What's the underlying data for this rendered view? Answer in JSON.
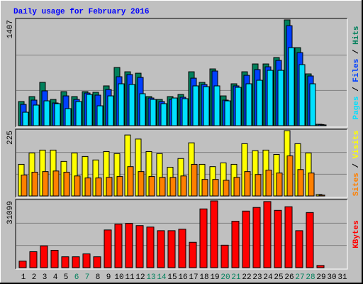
{
  "chart_data": [
    {
      "type": "bar",
      "title": "Daily usage for February 2016",
      "title_color": "#0000ff",
      "ylim": [
        0,
        1407
      ],
      "yticks": [
        1407
      ],
      "grid_divisions": 3,
      "legend_separator": " / ",
      "series": [
        {
          "name": "Hits",
          "color": "#00805c",
          "values": [
            321,
            387,
            576,
            349,
            453,
            387,
            453,
            444,
            529,
            774,
            717,
            698,
            387,
            349,
            387,
            415,
            717,
            576,
            755,
            396,
            557,
            717,
            821,
            821,
            906,
            1407,
            1038,
            689,
            19,
            0,
            0
          ]
        },
        {
          "name": "Files",
          "color": "#0040ff",
          "values": [
            283,
            340,
            463,
            302,
            396,
            349,
            434,
            406,
            481,
            651,
            680,
            642,
            368,
            321,
            349,
            378,
            632,
            548,
            727,
            340,
            529,
            670,
            746,
            783,
            868,
            1330,
            972,
            661,
            15,
            0,
            0
          ]
        },
        {
          "name": "Pages",
          "color": "#00e0ff",
          "values": [
            179,
            274,
            330,
            293,
            227,
            321,
            415,
            264,
            396,
            557,
            548,
            425,
            349,
            293,
            368,
            359,
            529,
            519,
            529,
            330,
            510,
            557,
            604,
            736,
            736,
            1038,
            812,
            557,
            10,
            0,
            0
          ]
        }
      ]
    },
    {
      "type": "bar",
      "ylim": [
        0,
        225
      ],
      "yticks": [
        225
      ],
      "grid_divisions": 3,
      "legend_separator": " / ",
      "series": [
        {
          "name": "Visits",
          "color": "#ffff00",
          "values": [
            109,
            148,
            158,
            158,
            119,
            148,
            136,
            124,
            153,
            146,
            210,
            196,
            153,
            146,
            99,
            129,
            183,
            109,
            101,
            114,
            109,
            180,
            156,
            158,
            143,
            225,
            180,
            148,
            5,
            0,
            0
          ]
        },
        {
          "name": "Sites",
          "color": "#ff8000",
          "values": [
            72,
            82,
            84,
            86,
            82,
            69,
            62,
            62,
            64,
            67,
            101,
            84,
            67,
            64,
            64,
            69,
            109,
            57,
            57,
            54,
            64,
            84,
            74,
            89,
            79,
            138,
            91,
            79,
            3,
            0,
            0
          ]
        }
      ]
    },
    {
      "type": "bar",
      "ylim": [
        0,
        31099
      ],
      "yticks": [
        31099
      ],
      "grid_divisions": 3,
      "legend_separator": " / ",
      "series": [
        {
          "name": "KBytes",
          "color": "#ff0000",
          "values": [
            3042,
            7436,
            10140,
            8112,
            5070,
            5070,
            6422,
            5070,
            17576,
            20280,
            20618,
            19604,
            18928,
            17238,
            17238,
            17914,
            11830,
            27381,
            31099,
            10478,
            21632,
            26367,
            28057,
            30800,
            26702,
            28395,
            17238,
            25688,
            1014,
            0,
            0
          ]
        }
      ],
      "categories": [
        "1",
        "2",
        "3",
        "4",
        "5",
        "6",
        "7",
        "8",
        "9",
        "10",
        "11",
        "12",
        "13",
        "14",
        "15",
        "16",
        "17",
        "18",
        "19",
        "20",
        "21",
        "22",
        "23",
        "24",
        "25",
        "26",
        "27",
        "28",
        "29",
        "30",
        "31"
      ],
      "category_colors": [
        "#000000",
        "#000000",
        "#000000",
        "#000000",
        "#000000",
        "#00805c",
        "#00805c",
        "#000000",
        "#000000",
        "#000000",
        "#000000",
        "#000000",
        "#00805c",
        "#00805c",
        "#000000",
        "#000000",
        "#000000",
        "#000000",
        "#000000",
        "#00805c",
        "#00805c",
        "#000000",
        "#000000",
        "#000000",
        "#000000",
        "#000000",
        "#00805c",
        "#00805c",
        "#000000",
        "#000000",
        "#000000"
      ]
    }
  ]
}
